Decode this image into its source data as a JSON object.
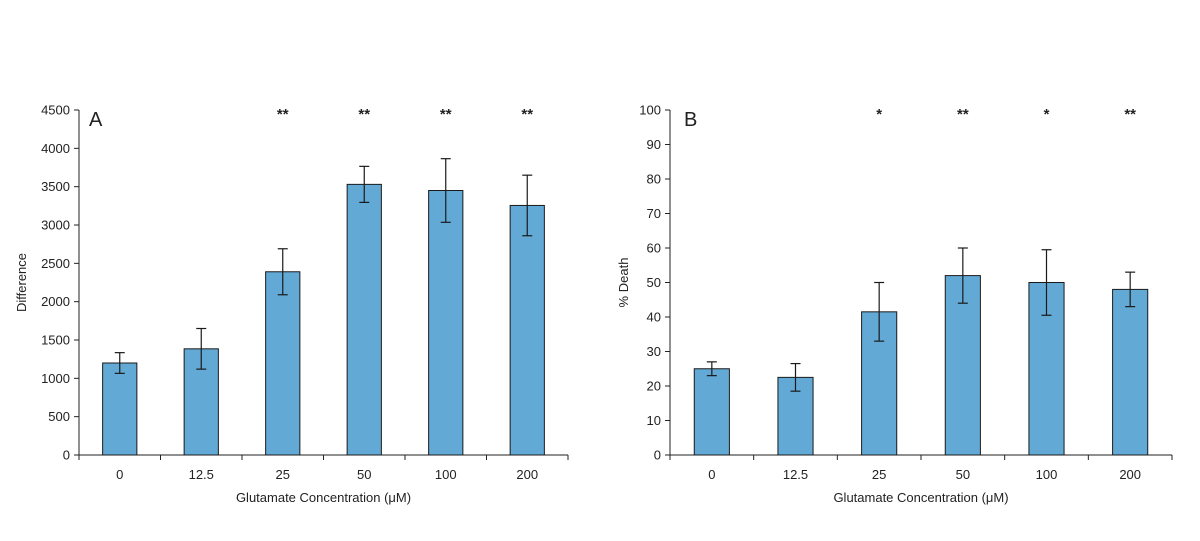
{
  "colors": {
    "bar_fill": "#62a9d6",
    "bar_stroke": "#1a1a1a",
    "axis": "#222222"
  },
  "chart_data": [
    {
      "type": "bar",
      "panel_label": "A",
      "categories": [
        "0",
        "12.5",
        "25",
        "50",
        "100",
        "200"
      ],
      "values": [
        1200,
        1385,
        2390,
        3530,
        3450,
        3255
      ],
      "error": [
        135,
        265,
        300,
        235,
        415,
        395
      ],
      "significance": [
        "",
        "",
        "**",
        "**",
        "**",
        "**"
      ],
      "xlabel": "Glutamate Concentration (μM)",
      "ylabel": "Difference",
      "ylim": [
        0,
        4500
      ],
      "yticks": [
        0,
        500,
        1000,
        1500,
        2000,
        2500,
        3000,
        3500,
        4000,
        4500
      ],
      "grid": false
    },
    {
      "type": "bar",
      "panel_label": "B",
      "categories": [
        "0",
        "12.5",
        "25",
        "50",
        "100",
        "200"
      ],
      "values": [
        25,
        22.5,
        41.5,
        52,
        50,
        48
      ],
      "error": [
        2,
        4,
        8.5,
        8,
        9.5,
        5
      ],
      "significance": [
        "",
        "",
        "*",
        "**",
        "*",
        "**"
      ],
      "xlabel": "Glutamate Concentration (μM)",
      "ylabel": "% Death",
      "ylim": [
        0,
        100
      ],
      "yticks": [
        0,
        10,
        20,
        30,
        40,
        50,
        60,
        70,
        80,
        90,
        100
      ],
      "grid": false
    }
  ]
}
